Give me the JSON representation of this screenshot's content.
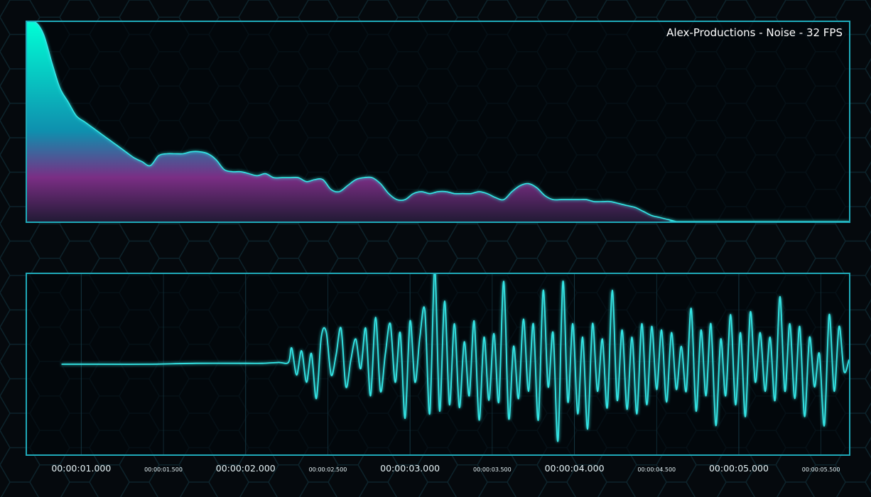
{
  "colors": {
    "background": "#05090d",
    "panel_border": "#1fa9b8",
    "line": "#34e6e6",
    "spectrum_top": "#00ffd6",
    "spectrum_mid": "#0f8fae",
    "spectrum_low": "#7a2e84",
    "spectrum_base": "#221a35"
  },
  "spectrum": {
    "title": "Alex-Productions - Noise - 32 FPS"
  },
  "chart_data": [
    {
      "type": "area",
      "title": "Alex-Productions - Noise - 32 FPS",
      "xlabel": "",
      "ylabel": "",
      "grid": false,
      "xlim": [
        0,
        1
      ],
      "ylim": [
        0,
        1
      ],
      "series": [
        {
          "x": [
            0.0,
            0.01,
            0.02,
            0.03,
            0.04,
            0.05,
            0.06,
            0.07,
            0.08,
            0.09,
            0.1,
            0.11,
            0.12,
            0.13,
            0.14,
            0.15,
            0.16,
            0.17,
            0.18,
            0.19,
            0.2,
            0.21,
            0.22,
            0.23,
            0.24,
            0.25,
            0.26,
            0.27,
            0.28,
            0.29,
            0.3,
            0.31,
            0.32,
            0.33,
            0.34,
            0.35,
            0.36,
            0.37,
            0.38,
            0.39,
            0.4,
            0.41,
            0.42,
            0.43,
            0.44,
            0.45,
            0.46,
            0.47,
            0.48,
            0.49,
            0.5,
            0.51,
            0.52,
            0.53,
            0.54,
            0.55,
            0.56,
            0.57,
            0.58,
            0.59,
            0.6,
            0.61,
            0.62,
            0.63,
            0.64,
            0.65,
            0.66,
            0.67,
            0.68,
            0.69,
            0.7,
            0.71,
            0.72,
            0.73,
            0.74,
            0.75,
            0.76,
            0.77,
            0.78,
            0.79,
            0.8,
            1.0
          ],
          "values": [
            1.0,
            1.0,
            0.94,
            0.8,
            0.67,
            0.6,
            0.53,
            0.5,
            0.47,
            0.44,
            0.41,
            0.38,
            0.35,
            0.32,
            0.3,
            0.28,
            0.33,
            0.34,
            0.34,
            0.34,
            0.35,
            0.35,
            0.34,
            0.31,
            0.26,
            0.25,
            0.25,
            0.24,
            0.23,
            0.24,
            0.22,
            0.22,
            0.22,
            0.22,
            0.2,
            0.21,
            0.21,
            0.16,
            0.15,
            0.18,
            0.21,
            0.22,
            0.22,
            0.19,
            0.14,
            0.11,
            0.11,
            0.14,
            0.15,
            0.14,
            0.15,
            0.15,
            0.14,
            0.14,
            0.14,
            0.15,
            0.14,
            0.12,
            0.11,
            0.15,
            0.18,
            0.19,
            0.17,
            0.13,
            0.11,
            0.11,
            0.11,
            0.11,
            0.11,
            0.1,
            0.1,
            0.1,
            0.09,
            0.08,
            0.07,
            0.05,
            0.03,
            0.02,
            0.01,
            0.0,
            0.0,
            0.0
          ]
        }
      ]
    },
    {
      "type": "line",
      "title": "",
      "xlabel": "",
      "ylabel": "",
      "grid": true,
      "xlim": [
        0.67,
        5.67
      ],
      "ylim": [
        -1.0,
        1.0
      ],
      "x_ticks_major": [
        "00:00:01.000",
        "00:00:02.000",
        "00:00:03.000",
        "00:00:04.000",
        "00:00:05.000"
      ],
      "x_ticks_minor": [
        "00:00:01.500",
        "00:00:02.500",
        "00:00:03.500",
        "00:00:04.500",
        "00:00:05.500"
      ],
      "x_tick_values_major": [
        1.0,
        2.0,
        3.0,
        4.0,
        5.0
      ],
      "x_tick_values_minor": [
        1.5,
        2.5,
        3.5,
        4.5,
        5.5
      ],
      "series": [
        {
          "x": [
            0.88,
            1.1,
            1.4,
            1.7,
            2.0,
            2.1,
            2.2,
            2.26,
            2.28,
            2.31,
            2.34,
            2.37,
            2.4,
            2.43,
            2.46,
            2.49,
            2.52,
            2.55,
            2.58,
            2.61,
            2.64,
            2.67,
            2.7,
            2.73,
            2.76,
            2.79,
            2.82,
            2.85,
            2.88,
            2.91,
            2.94,
            2.97,
            3.0,
            3.03,
            3.06,
            3.09,
            3.12,
            3.15,
            3.18,
            3.21,
            3.24,
            3.27,
            3.3,
            3.33,
            3.36,
            3.39,
            3.42,
            3.45,
            3.48,
            3.51,
            3.54,
            3.57,
            3.6,
            3.63,
            3.66,
            3.69,
            3.72,
            3.75,
            3.78,
            3.81,
            3.84,
            3.87,
            3.9,
            3.93,
            3.96,
            3.99,
            4.02,
            4.05,
            4.08,
            4.11,
            4.14,
            4.17,
            4.2,
            4.23,
            4.26,
            4.29,
            4.32,
            4.35,
            4.38,
            4.41,
            4.44,
            4.47,
            4.5,
            4.53,
            4.56,
            4.59,
            4.62,
            4.65,
            4.68,
            4.71,
            4.74,
            4.77,
            4.8,
            4.83,
            4.86,
            4.89,
            4.92,
            4.95,
            4.98,
            5.01,
            5.04,
            5.07,
            5.1,
            5.13,
            5.16,
            5.19,
            5.22,
            5.25,
            5.28,
            5.31,
            5.34,
            5.37,
            5.4,
            5.43,
            5.46,
            5.49,
            5.52,
            5.55,
            5.58,
            5.61,
            5.64,
            5.67
          ],
          "values": [
            0.0,
            0.0,
            0.0,
            0.01,
            0.01,
            0.01,
            0.02,
            0.02,
            0.18,
            -0.12,
            0.15,
            -0.2,
            0.12,
            -0.38,
            0.3,
            0.36,
            -0.12,
            0.1,
            0.4,
            -0.25,
            0.05,
            0.28,
            -0.05,
            0.4,
            -0.35,
            0.52,
            -0.3,
            0.12,
            0.45,
            -0.2,
            0.35,
            -0.6,
            0.48,
            -0.2,
            0.3,
            0.6,
            -0.55,
            1.05,
            -0.52,
            0.7,
            -0.45,
            0.45,
            -0.48,
            0.25,
            -0.35,
            0.48,
            -0.62,
            0.3,
            -0.4,
            0.34,
            -0.42,
            0.92,
            -0.6,
            0.2,
            -0.38,
            0.5,
            -0.3,
            0.45,
            -0.62,
            0.82,
            -0.25,
            0.35,
            -0.85,
            0.92,
            -0.42,
            0.45,
            -0.55,
            0.3,
            -0.72,
            0.45,
            -0.3,
            0.28,
            -0.48,
            0.82,
            -0.4,
            0.38,
            -0.5,
            0.3,
            -0.55,
            0.45,
            -0.45,
            0.42,
            -0.28,
            0.38,
            -0.42,
            0.35,
            -0.28,
            0.2,
            -0.3,
            0.62,
            -0.52,
            0.38,
            -0.35,
            0.45,
            -0.68,
            0.28,
            -0.35,
            0.55,
            -0.45,
            0.35,
            -0.58,
            0.58,
            -0.2,
            0.35,
            -0.3,
            0.3,
            -0.4,
            0.75,
            -0.3,
            0.45,
            -0.38,
            0.42,
            -0.58,
            0.3,
            -0.25,
            0.12,
            -0.68,
            0.55,
            -0.3,
            0.42,
            -0.08,
            0.05
          ]
        }
      ]
    }
  ]
}
